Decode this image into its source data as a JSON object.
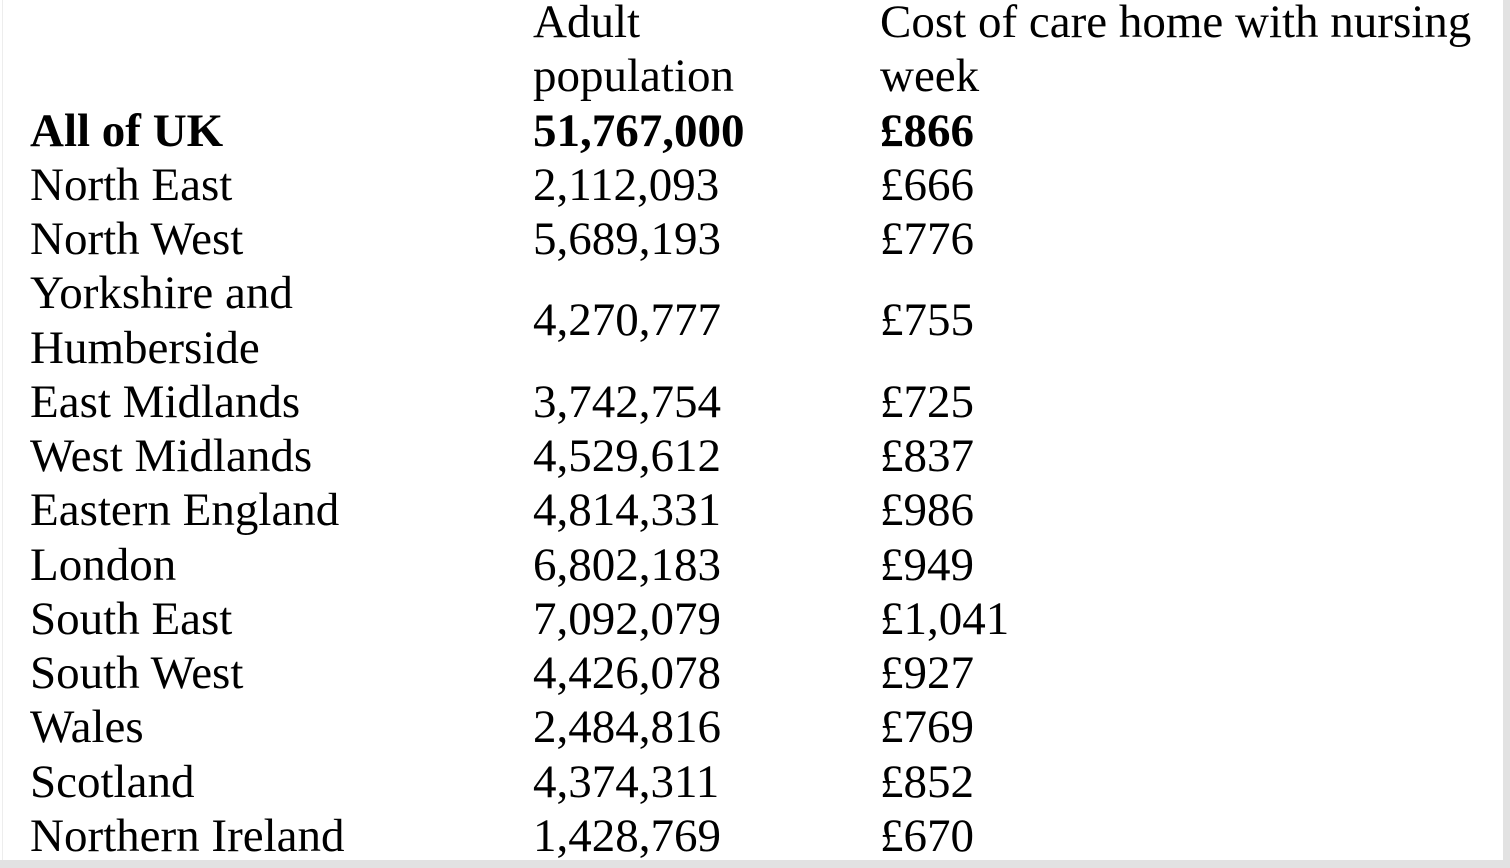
{
  "page": {
    "background": "#ffffff",
    "edge_color": "#e2e2e2"
  },
  "table": {
    "header": {
      "region": "",
      "population_line1": "Adult",
      "population_line2": "population",
      "cost_line1": "Cost of care home with nursing",
      "cost_line2": "week"
    },
    "rows": [
      {
        "region": "All of UK",
        "adult_population": "51,767,000",
        "cost": "£866",
        "bold": true
      },
      {
        "region": "North East",
        "adult_population": "2,112,093",
        "cost": "£666",
        "bold": false
      },
      {
        "region": "North West",
        "adult_population": "5,689,193",
        "cost": "£776",
        "bold": false
      },
      {
        "region": "Yorkshire and Humberside",
        "adult_population": "4,270,777",
        "cost": "£755",
        "bold": false
      },
      {
        "region": "East Midlands",
        "adult_population": "3,742,754",
        "cost": "£725",
        "bold": false
      },
      {
        "region": "West Midlands",
        "adult_population": "4,529,612",
        "cost": "£837",
        "bold": false
      },
      {
        "region": "Eastern England",
        "adult_population": "4,814,331",
        "cost": "£986",
        "bold": false
      },
      {
        "region": "London",
        "adult_population": "6,802,183",
        "cost": "£949",
        "bold": false
      },
      {
        "region": "South East",
        "adult_population": "7,092,079",
        "cost": "£1,041",
        "bold": false
      },
      {
        "region": "South West",
        "adult_population": "4,426,078",
        "cost": "£927",
        "bold": false
      },
      {
        "region": "Wales",
        "adult_population": "2,484,816",
        "cost": "£769",
        "bold": false
      },
      {
        "region": "Scotland",
        "adult_population": "4,374,311",
        "cost": "£852",
        "bold": false
      },
      {
        "region": "Northern Ireland",
        "adult_population": "1,428,769",
        "cost": "£670",
        "bold": false
      }
    ]
  }
}
